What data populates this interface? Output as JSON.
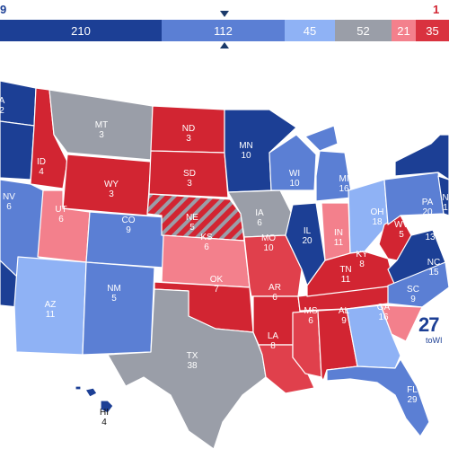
{
  "header": {
    "left_total": "9",
    "right_total": "1",
    "segments": [
      "210",
      "112",
      "45",
      "52",
      "21",
      "35"
    ]
  },
  "colors": {
    "safe_dem": "#1c3f95",
    "likely_dem": "#5b7fd4",
    "lean_dem": "#8fb2f5",
    "tossup": "#9a9ea8",
    "lean_rep": "#f3808c",
    "likely_rep": "#e0404c",
    "safe_rep": "#d22532"
  },
  "states": {
    "WA": {
      "abbr": "A",
      "ev": "2"
    },
    "MT": {
      "abbr": "MT",
      "ev": "3"
    },
    "ND": {
      "abbr": "ND",
      "ev": "3"
    },
    "MN": {
      "abbr": "MN",
      "ev": "10"
    },
    "ID": {
      "abbr": "ID",
      "ev": "4"
    },
    "WY": {
      "abbr": "WY",
      "ev": "3"
    },
    "SD": {
      "abbr": "SD",
      "ev": "3"
    },
    "WI": {
      "abbr": "WI",
      "ev": "10"
    },
    "MI": {
      "abbr": "MI",
      "ev": "16"
    },
    "NE": {
      "abbr": "NE",
      "ev": "5"
    },
    "IA": {
      "abbr": "IA",
      "ev": "6"
    },
    "IL": {
      "abbr": "IL",
      "ev": "20"
    },
    "IN": {
      "abbr": "IN",
      "ev": "11"
    },
    "OH": {
      "abbr": "OH",
      "ev": "18"
    },
    "PA": {
      "abbr": "PA",
      "ev": "20"
    },
    "NJ": {
      "abbr": "N",
      "ev": "1"
    },
    "NV": {
      "abbr": "NV",
      "ev": "6"
    },
    "UT": {
      "abbr": "UT",
      "ev": "6"
    },
    "CO": {
      "abbr": "CO",
      "ev": "9"
    },
    "KS": {
      "abbr": "KS",
      "ev": "6"
    },
    "MO": {
      "abbr": "MO",
      "ev": "10"
    },
    "KY": {
      "abbr": "KY",
      "ev": "8"
    },
    "WV": {
      "abbr": "WV",
      "ev": "5"
    },
    "VA": {
      "abbr": "VA",
      "ev": "13"
    },
    "AZ": {
      "abbr": "AZ",
      "ev": "11"
    },
    "NM": {
      "abbr": "NM",
      "ev": "5"
    },
    "OK": {
      "abbr": "OK",
      "ev": "7"
    },
    "AR": {
      "abbr": "AR",
      "ev": "6"
    },
    "TN": {
      "abbr": "TN",
      "ev": "11"
    },
    "NC": {
      "abbr": "NC",
      "ev": "15"
    },
    "SC": {
      "abbr": "SC",
      "ev": "9"
    },
    "GA": {
      "abbr": "GA",
      "ev": "16"
    },
    "AL": {
      "abbr": "AL",
      "ev": "9"
    },
    "MS": {
      "abbr": "MS",
      "ev": "6"
    },
    "LA": {
      "abbr": "LA",
      "ev": "8"
    },
    "TX": {
      "abbr": "TX",
      "ev": "38"
    },
    "FL": {
      "abbr": "FL",
      "ev": "29"
    },
    "HI": {
      "abbr": "HI",
      "ev": "4"
    }
  },
  "logo": {
    "mark": "27",
    "sub": "toWI"
  }
}
